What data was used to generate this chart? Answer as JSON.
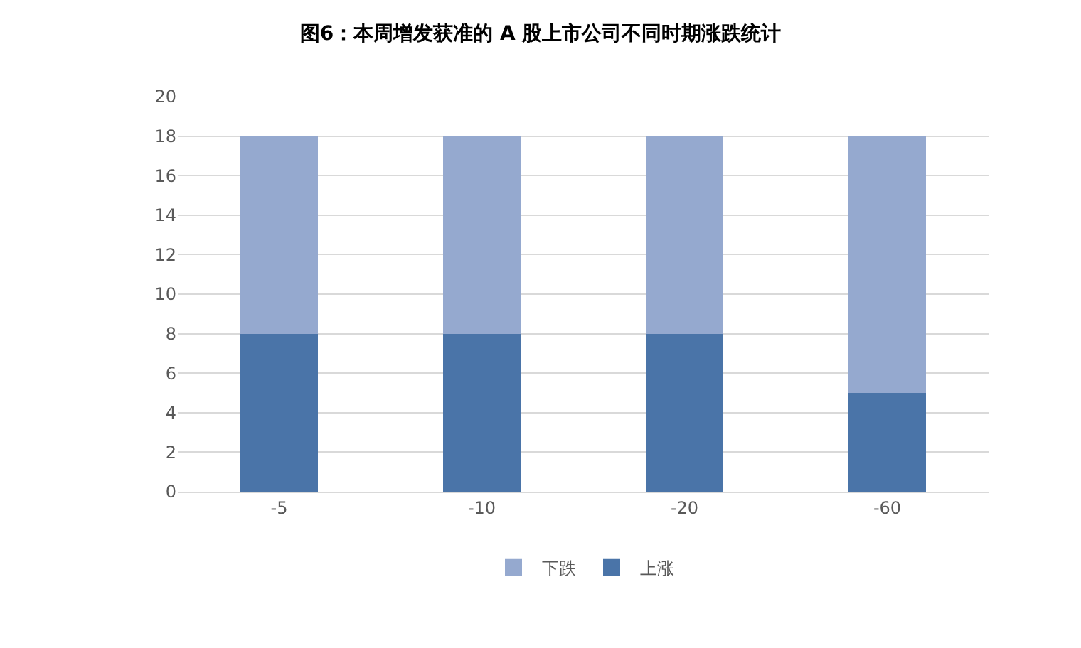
{
  "chart_data": {
    "type": "bar",
    "title": "图6：本周增发获准的 A 股上市公司不同时期涨跌统计",
    "categories": [
      "-5",
      "-10",
      "-20",
      "-60"
    ],
    "stacked": true,
    "series": [
      {
        "name": "上涨",
        "color": "#4a74a8",
        "values": [
          8,
          8,
          8,
          5
        ]
      },
      {
        "name": "下跌",
        "color": "#95a9cf",
        "values": [
          10,
          10,
          10,
          13
        ]
      }
    ],
    "ylim": [
      0,
      20
    ],
    "yticks": [
      0,
      2,
      4,
      6,
      8,
      10,
      12,
      14,
      16,
      18,
      20
    ],
    "grid": "y",
    "legend": "bottom"
  }
}
